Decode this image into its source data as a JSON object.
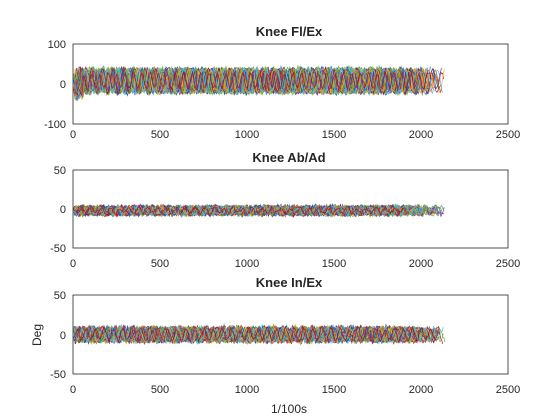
{
  "chart_data": [
    {
      "type": "line",
      "title": "Knee Fl/Ex",
      "xlabel": "",
      "ylabel": "",
      "xlim": [
        0,
        2500
      ],
      "ylim": [
        -100,
        100
      ],
      "xticks": [
        "0",
        "500",
        "1000",
        "1500",
        "2000",
        "2500"
      ],
      "yticks": [
        "100",
        "0",
        "-100"
      ],
      "grid": false,
      "legend": "none",
      "signal": {
        "n_traces": 42,
        "length_range": [
          1900,
          2140
        ],
        "baseline": 8,
        "amplitude": 28,
        "noise": 4,
        "oscillation_period": 55,
        "initial_transient": [
          30,
          70
        ]
      }
    },
    {
      "type": "line",
      "title": "Knee Ab/Ad",
      "xlabel": "",
      "ylabel": "",
      "xlim": [
        0,
        2500
      ],
      "ylim": [
        -50,
        50
      ],
      "xticks": [
        "0",
        "500",
        "1000",
        "1500",
        "2000",
        "2500"
      ],
      "yticks": [
        "50",
        "0",
        "-50"
      ],
      "grid": false,
      "legend": "none",
      "signal": {
        "n_traces": 42,
        "length_range": [
          1900,
          2140
        ],
        "baseline": -2,
        "amplitude": 5,
        "noise": 2.5,
        "oscillation_period": 55
      }
    },
    {
      "type": "line",
      "title": "Knee In/Ex",
      "xlabel": "1/100s",
      "ylabel": "Deg",
      "xlim": [
        0,
        2500
      ],
      "ylim": [
        -50,
        50
      ],
      "xticks": [
        "0",
        "500",
        "1000",
        "1500",
        "2000",
        "2500"
      ],
      "yticks": [
        "50",
        "0",
        "-50"
      ],
      "grid": false,
      "legend": "none",
      "signal": {
        "n_traces": 42,
        "length_range": [
          1900,
          2140
        ],
        "baseline": 0,
        "amplitude": 8,
        "noise": 3,
        "oscillation_period": 55
      }
    }
  ],
  "colors": {
    "series": [
      "#0072BD",
      "#D95319",
      "#EDB120",
      "#7E2F8E",
      "#77AC30",
      "#4DBEEE",
      "#A2142F"
    ],
    "axis": "#262626",
    "background": "#ffffff"
  }
}
